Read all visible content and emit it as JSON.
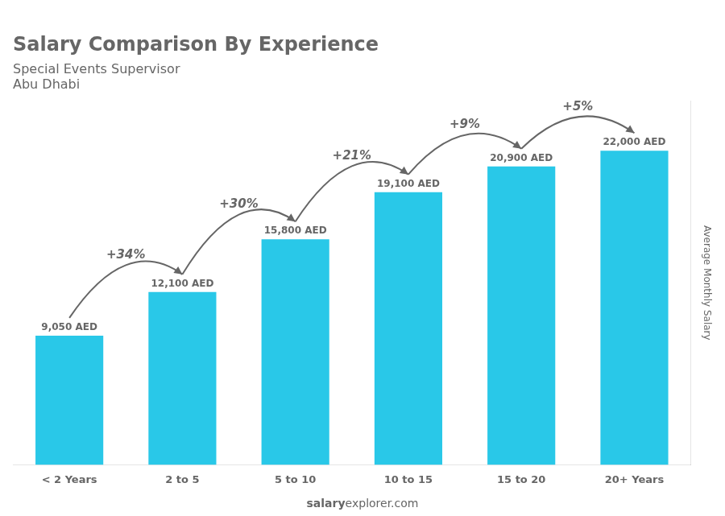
{
  "chart_data": {
    "type": "bar",
    "title": "Salary Comparison By Experience",
    "subtitle": "Special Events Supervisor",
    "location": "Abu Dhabi",
    "ylabel": "Average Monthly Salary",
    "footer": [
      "salary",
      "explorer.com"
    ],
    "categories": [
      "< 2 Years",
      "2 to 5",
      "5 to 10",
      "10 to 15",
      "15 to 20",
      "20+ Years"
    ],
    "values": [
      9050,
      12100,
      15800,
      19100,
      20900,
      22000
    ],
    "value_labels": [
      "9,050 AED",
      "12,100 AED",
      "15,800 AED",
      "19,100 AED",
      "20,900 AED",
      "22,000 AED"
    ],
    "change_labels": [
      "+34%",
      "+30%",
      "+21%",
      "+9%",
      "+5%"
    ],
    "color": "#29c8e8",
    "ylim": [
      0,
      25500
    ],
    "yticks": [],
    "grid": false,
    "data_labels": true,
    "tick_labels": "x"
  }
}
